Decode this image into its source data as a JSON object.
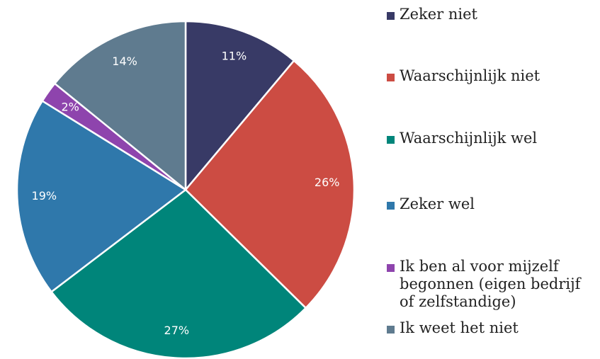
{
  "chart_data": {
    "type": "pie",
    "categories": [
      "Zeker niet",
      "Waarschijnlijk niet",
      "Waarschijnlijk wel",
      "Zeker wel",
      "Ik ben al voor mijzelf begonnen (eigen bedrijf of zelfstandige)",
      "Ik weet het niet"
    ],
    "values": [
      11,
      26,
      27,
      19,
      2,
      14
    ],
    "value_labels": [
      "11%",
      "26%",
      "27%",
      "19%",
      "2%",
      "14%"
    ],
    "colors": [
      "#383a66",
      "#cc4c43",
      "#00857a",
      "#2f78ab",
      "#8e44ad",
      "#5f7b8f"
    ],
    "legend": "right"
  }
}
